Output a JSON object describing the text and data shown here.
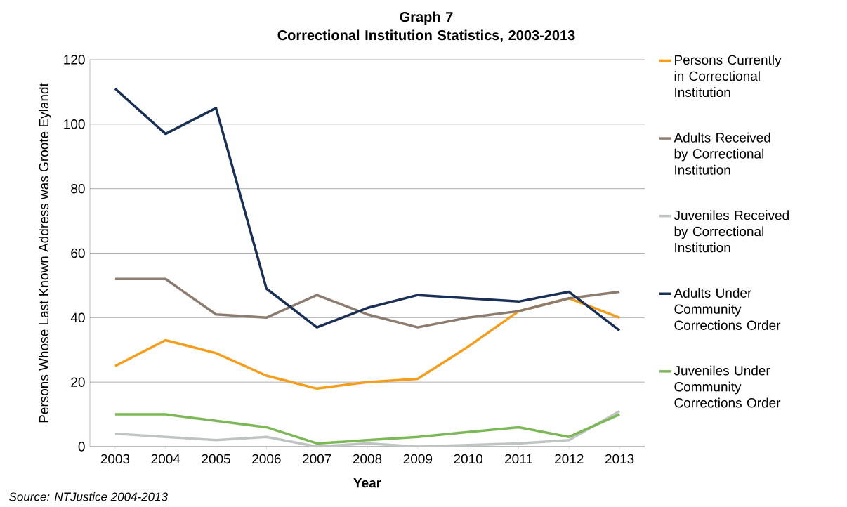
{
  "chart_data": {
    "type": "line",
    "title": "Graph 7\nCorrectional Institution Statistics, 2003-2013",
    "xlabel": "Year",
    "ylabel": "Persons Whose Last Known Address was Groote Eylandt",
    "categories": [
      "2003",
      "2004",
      "2005",
      "2006",
      "2007",
      "2008",
      "2009",
      "2010",
      "2011",
      "2012",
      "2013"
    ],
    "series": [
      {
        "name": "Persons Currently in Correctional Institution",
        "color": "#f59d1c",
        "values": [
          25,
          33,
          29,
          22,
          18,
          20,
          21,
          31,
          42,
          46,
          40
        ]
      },
      {
        "name": "Adults Received by Correctional Institution",
        "color": "#8c7b6f",
        "values": [
          52,
          52,
          41,
          40,
          47,
          41,
          37,
          40,
          42,
          46,
          48
        ]
      },
      {
        "name": "Juveniles Received by Correctional Institution",
        "color": "#bfc3c3",
        "values": [
          4,
          3,
          2,
          3,
          0,
          1,
          0,
          0.5,
          1,
          2,
          11
        ]
      },
      {
        "name": "Adults Under Community Corrections Order",
        "color": "#1a2f55",
        "values": [
          111,
          97,
          105,
          49,
          37,
          43,
          47,
          46,
          45,
          48,
          36
        ]
      },
      {
        "name": "Juveniles Under Community Corrections Order",
        "color": "#7cb857",
        "values": [
          10,
          10,
          8,
          6,
          1,
          2,
          3,
          4.5,
          6,
          3,
          10
        ]
      }
    ],
    "ylim": [
      0,
      120
    ],
    "yticks": [
      0,
      20,
      40,
      60,
      80,
      100,
      120
    ],
    "grid": "y",
    "legend": "right",
    "annotations": [
      "Source: NTJustice 2004-2013"
    ]
  }
}
